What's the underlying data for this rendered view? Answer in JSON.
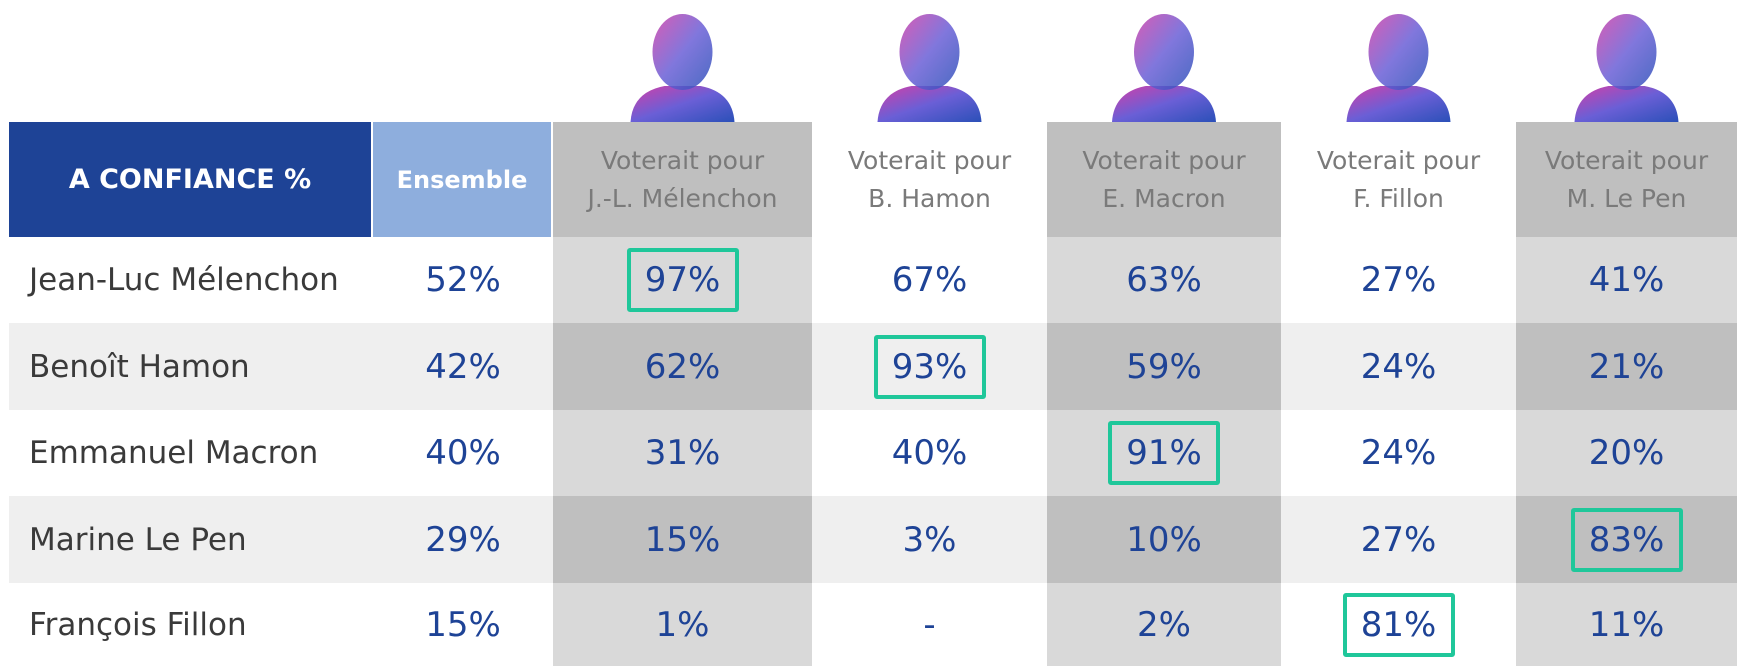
{
  "header": {
    "title": "A CONFIANCE %",
    "ensemble": "Ensemble",
    "columns": [
      [
        "Voterait pour",
        "J.-L. Mélenchon"
      ],
      [
        "Voterait pour",
        "B. Hamon"
      ],
      [
        "Voterait pour",
        "E. Macron"
      ],
      [
        "Voterait pour",
        "F. Fillon"
      ],
      [
        "Voterait pour",
        "M. Le Pen"
      ]
    ]
  },
  "table": {
    "rows": [
      {
        "label": "Jean-Luc Mélenchon",
        "ensemble": "52%",
        "values": [
          "97%",
          "67%",
          "63%",
          "27%",
          "41%"
        ],
        "highlight": 0
      },
      {
        "label": "Benoît Hamon",
        "ensemble": "42%",
        "values": [
          "62%",
          "93%",
          "59%",
          "24%",
          "21%"
        ],
        "highlight": 1
      },
      {
        "label": "Emmanuel Macron",
        "ensemble": "40%",
        "values": [
          "31%",
          "40%",
          "91%",
          "24%",
          "20%"
        ],
        "highlight": 2
      },
      {
        "label": "Marine Le Pen",
        "ensemble": "29%",
        "values": [
          "15%",
          "3%",
          "10%",
          "27%",
          "83%"
        ],
        "highlight": 4
      },
      {
        "label": "François Fillon",
        "ensemble": "15%",
        "values": [
          "1%",
          "-",
          "2%",
          "81%",
          "11%"
        ],
        "highlight": 3
      }
    ]
  }
}
